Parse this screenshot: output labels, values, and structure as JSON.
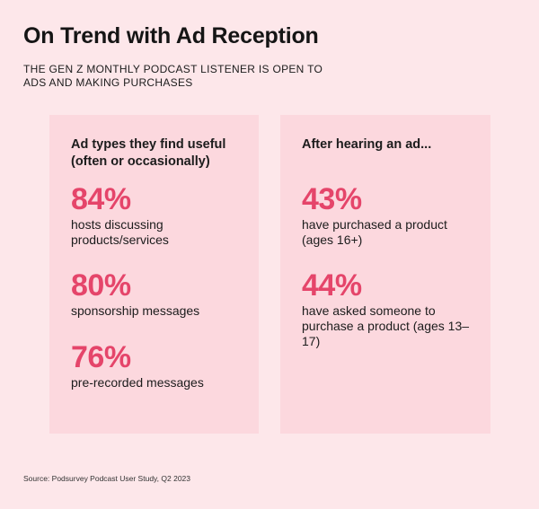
{
  "title": "On Trend with Ad Reception",
  "subtitle": "THE GEN Z MONTHLY PODCAST LISTENER IS OPEN TO ADS AND MAKING PURCHASES",
  "left_card": {
    "heading": "Ad types they find useful (often or occasionally)",
    "stats": [
      {
        "value": "84%",
        "label": "hosts discussing products/services"
      },
      {
        "value": "80%",
        "label": "sponsorship messages"
      },
      {
        "value": "76%",
        "label": "pre-recorded messages"
      }
    ]
  },
  "right_card": {
    "heading": "After hearing an ad...",
    "stats": [
      {
        "value": "43%",
        "label": "have purchased a product (ages 16+)"
      },
      {
        "value": "44%",
        "label": "have asked someone to purchase a product (ages 13–17)"
      }
    ]
  },
  "source": "Source: Podsurvey Podcast User Study, Q2 2023",
  "colors": {
    "background": "#fde7ea",
    "card": "#fcd8de",
    "accent": "#e5456a"
  }
}
